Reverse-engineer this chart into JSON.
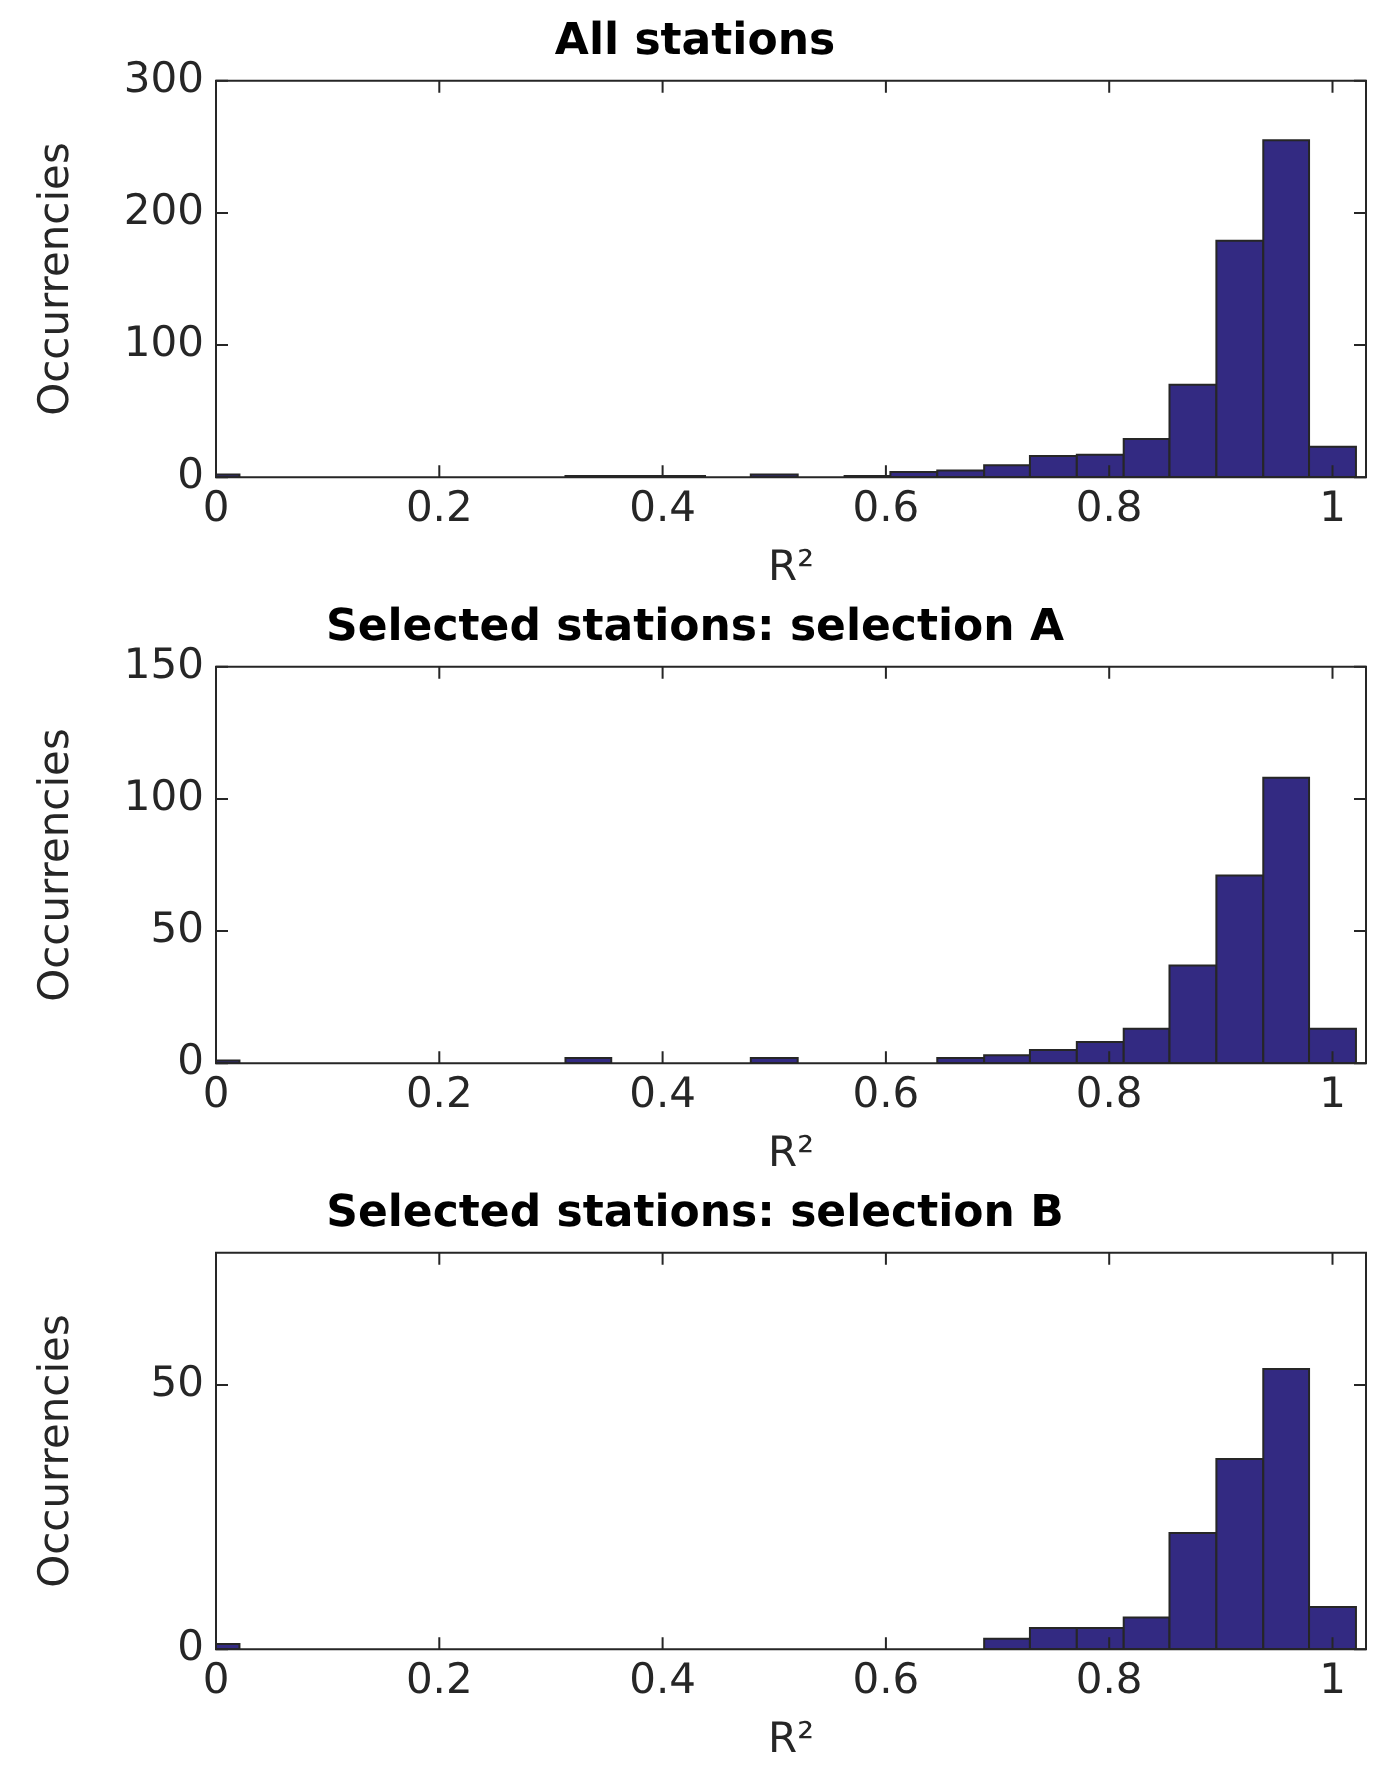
{
  "chart_data": [
    {
      "type": "histogram",
      "title": "All stations",
      "xlabel": "R²",
      "ylabel": "Occurrencies",
      "color": "#332a82",
      "bins": [
        0,
        0.021,
        0.313,
        0.354,
        0.396,
        0.438,
        0.479,
        0.521,
        0.563,
        0.604,
        0.646,
        0.688,
        0.729,
        0.771,
        0.813,
        0.854,
        0.896,
        0.938,
        0.979,
        1.021
      ],
      "values": [
        2,
        0,
        1,
        1,
        1,
        0,
        2,
        0,
        1,
        4,
        5,
        9,
        16,
        17,
        29,
        70,
        179,
        255,
        23
      ],
      "xlim": [
        0,
        1.03
      ],
      "xticks": [
        0,
        0.2,
        0.4,
        0.6,
        0.8,
        1
      ],
      "ylim": [
        0,
        300
      ],
      "yticks": [
        0,
        100,
        200,
        300
      ]
    },
    {
      "type": "histogram",
      "title": "Selected stations: selection A",
      "xlabel": "R²",
      "ylabel": "Occurrencies",
      "color": "#332a82",
      "bins": [
        0,
        0.021,
        0.313,
        0.354,
        0.479,
        0.521,
        0.646,
        0.688,
        0.729,
        0.771,
        0.813,
        0.854,
        0.896,
        0.938,
        0.979,
        1.021
      ],
      "values": [
        1,
        0,
        2,
        0,
        2,
        0,
        2,
        3,
        5,
        8,
        13,
        37,
        71,
        108,
        13
      ],
      "xlim": [
        0,
        1.03
      ],
      "xticks": [
        0,
        0.2,
        0.4,
        0.6,
        0.8,
        1
      ],
      "ylim": [
        0,
        150
      ],
      "yticks": [
        0,
        50,
        100,
        150
      ]
    },
    {
      "type": "histogram",
      "title": "Selected stations: selection B",
      "xlabel": "R²",
      "ylabel": "Occurrencies",
      "color": "#332a82",
      "bins": [
        0,
        0.021,
        0.688,
        0.729,
        0.771,
        0.813,
        0.854,
        0.896,
        0.938,
        0.979,
        1.021
      ],
      "values": [
        1,
        0,
        2,
        4,
        4,
        6,
        22,
        36,
        53,
        8
      ],
      "xlim": [
        0,
        1.03
      ],
      "xticks": [
        0,
        0.2,
        0.4,
        0.6,
        0.8,
        1
      ],
      "ylim": [
        0,
        75
      ],
      "yticks": [
        0,
        50
      ]
    }
  ]
}
